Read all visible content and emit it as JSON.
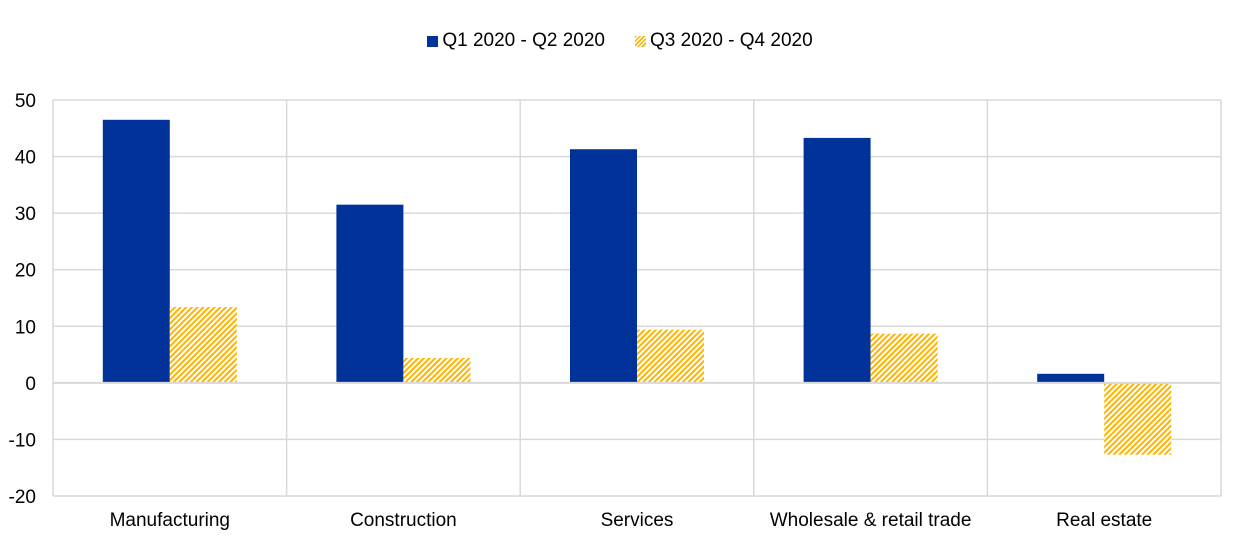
{
  "chart_data": {
    "type": "bar",
    "title": "",
    "xlabel": "",
    "ylabel": "",
    "categories": [
      "Manufacturing",
      "Construction",
      "Services",
      "Wholesale & retail trade",
      "Real estate"
    ],
    "series": [
      {
        "name": "Q1 2020 - Q2 2020",
        "color": "#003299",
        "pattern": "solid",
        "values": [
          46.5,
          31.5,
          41.3,
          43.3,
          1.6
        ]
      },
      {
        "name": "Q3 2020 - Q4 2020",
        "color": "#FFB400",
        "pattern": "hatched",
        "values": [
          13.4,
          4.4,
          9.4,
          8.7,
          -12.7
        ]
      }
    ],
    "ylim": [
      -20,
      50
    ],
    "yticks": [
      -20,
      -10,
      0,
      10,
      20,
      30,
      40,
      50
    ],
    "grid": true,
    "legend_position": "top-center"
  }
}
